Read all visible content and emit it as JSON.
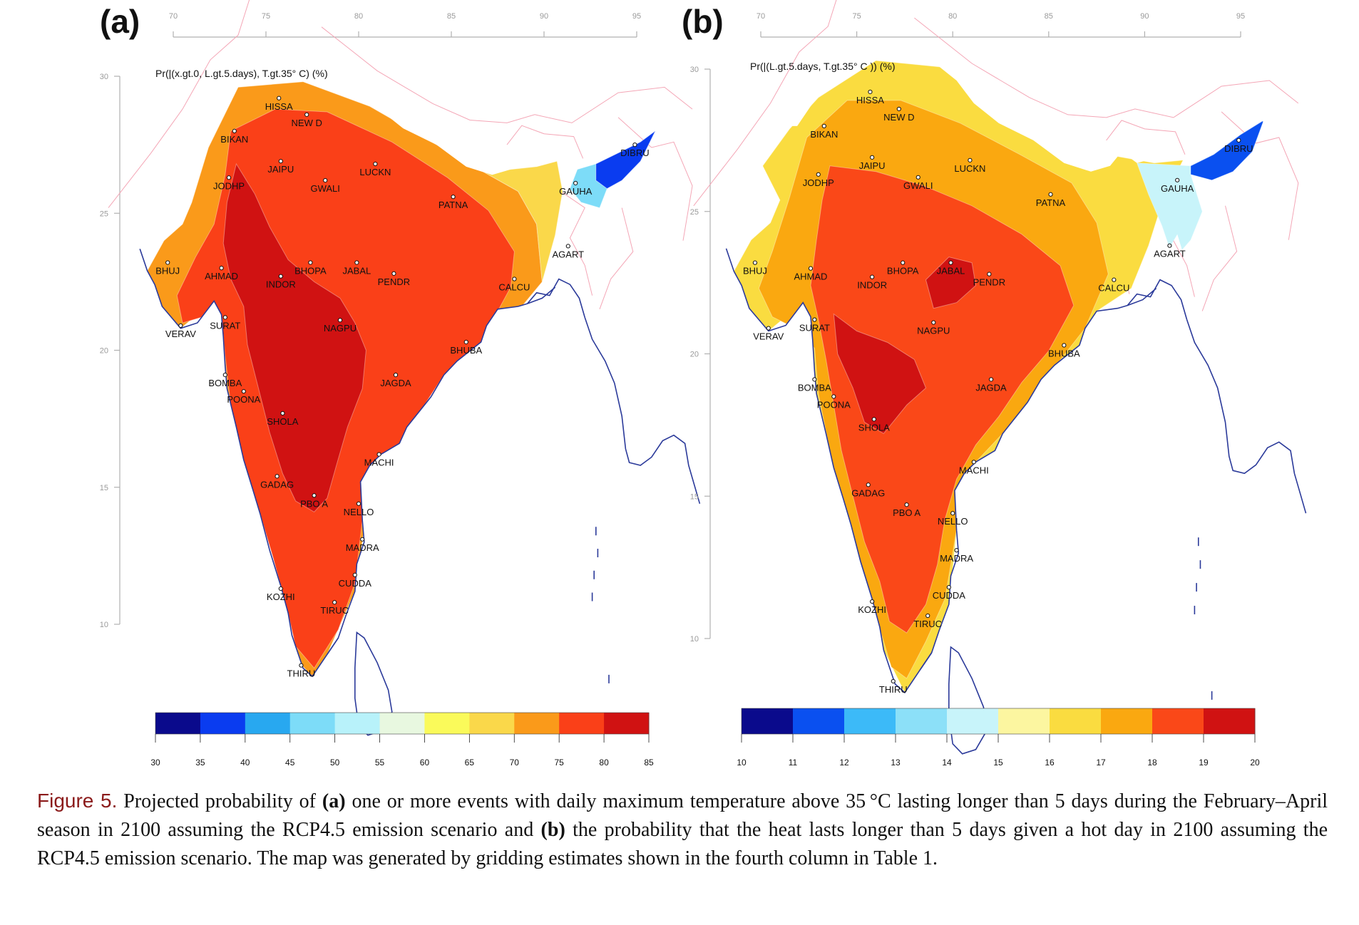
{
  "figure": {
    "label": "Figure 5.",
    "caption_parts": [
      {
        "text": " Projected probability of ",
        "bold": false
      },
      {
        "text": "(a)",
        "bold": true
      },
      {
        "text": " one or more events with daily maximum temperature above 35 °C lasting longer than 5 days during the February–April season in 2100 assuming the RCP4.5 emission scenario and ",
        "bold": false
      },
      {
        "text": "(b)",
        "bold": true
      },
      {
        "text": " the probability that the heat lasts longer than 5 days given a hot day in 2100 assuming the RCP4.5 emission scenario. The map was generated by gridding estimates shown in the fourth column in Table 1.",
        "bold": false
      }
    ]
  },
  "colors": {
    "coast": "#2b3a9a",
    "border": "#f4a6b6",
    "axis": "#b0b0b0"
  },
  "panels": [
    {
      "id": "a",
      "label": "(a)",
      "title": "Pr(|(x.gt.0, L.gt.5.days), T.gt.35° C)  (%)",
      "lon_ticks": [
        "70",
        "75",
        "80",
        "85",
        "90",
        "95"
      ],
      "lat_ticks": [
        "30",
        "25",
        "20",
        "15",
        "10"
      ],
      "colorbar": {
        "ticks": [
          "30",
          "35",
          "40",
          "45",
          "50",
          "55",
          "60",
          "65",
          "70",
          "75",
          "80",
          "85"
        ],
        "colors": [
          "#0a0a8c",
          "#0a3cf0",
          "#28a8f0",
          "#7ddcf8",
          "#b8f2fa",
          "#e8f8e0",
          "#fafa5a",
          "#fad84a",
          "#fa9a1a",
          "#fa4018",
          "#d01212"
        ]
      },
      "cities": [
        {
          "name": "HISSA",
          "lon": 75.7,
          "lat": 29.2
        },
        {
          "name": "NEW D",
          "lon": 77.2,
          "lat": 28.6
        },
        {
          "name": "BIKAN",
          "lon": 73.3,
          "lat": 28.0
        },
        {
          "name": "DIBRU",
          "lon": 94.9,
          "lat": 27.5
        },
        {
          "name": "JAIPU",
          "lon": 75.8,
          "lat": 26.9
        },
        {
          "name": "LUCKN",
          "lon": 80.9,
          "lat": 26.8
        },
        {
          "name": "JODHP",
          "lon": 73.0,
          "lat": 26.3
        },
        {
          "name": "GWALI",
          "lon": 78.2,
          "lat": 26.2
        },
        {
          "name": "GAUHA",
          "lon": 91.7,
          "lat": 26.1
        },
        {
          "name": "PATNA",
          "lon": 85.1,
          "lat": 25.6
        },
        {
          "name": "AGART",
          "lon": 91.3,
          "lat": 23.8
        },
        {
          "name": "BHUJ",
          "lon": 69.7,
          "lat": 23.2
        },
        {
          "name": "AHMAD",
          "lon": 72.6,
          "lat": 23.0
        },
        {
          "name": "BHOPA",
          "lon": 77.4,
          "lat": 23.2
        },
        {
          "name": "JABAL",
          "lon": 79.9,
          "lat": 23.2
        },
        {
          "name": "INDOR",
          "lon": 75.8,
          "lat": 22.7
        },
        {
          "name": "PENDR",
          "lon": 81.9,
          "lat": 22.8
        },
        {
          "name": "CALCU",
          "lon": 88.4,
          "lat": 22.6
        },
        {
          "name": "SURAT",
          "lon": 72.8,
          "lat": 21.2
        },
        {
          "name": "NAGPU",
          "lon": 79.0,
          "lat": 21.1
        },
        {
          "name": "VERAV",
          "lon": 70.4,
          "lat": 20.9
        },
        {
          "name": "BHUBA",
          "lon": 85.8,
          "lat": 20.3
        },
        {
          "name": "JAGDA",
          "lon": 82.0,
          "lat": 19.1
        },
        {
          "name": "BOMBA",
          "lon": 72.8,
          "lat": 19.1
        },
        {
          "name": "POONA",
          "lon": 73.8,
          "lat": 18.5
        },
        {
          "name": "SHOLA",
          "lon": 75.9,
          "lat": 17.7
        },
        {
          "name": "MACHI",
          "lon": 81.1,
          "lat": 16.2
        },
        {
          "name": "GADAG",
          "lon": 75.6,
          "lat": 15.4
        },
        {
          "name": "PBO A",
          "lon": 77.6,
          "lat": 14.7
        },
        {
          "name": "NELLO",
          "lon": 80.0,
          "lat": 14.4
        },
        {
          "name": "MADRA",
          "lon": 80.2,
          "lat": 13.1
        },
        {
          "name": "CUDDA",
          "lon": 79.8,
          "lat": 11.8
        },
        {
          "name": "KOZHI",
          "lon": 75.8,
          "lat": 11.3
        },
        {
          "name": "TIRUC",
          "lon": 78.7,
          "lat": 10.8
        },
        {
          "name": "THIRU",
          "lon": 76.9,
          "lat": 8.5
        }
      ]
    },
    {
      "id": "b",
      "label": "(b)",
      "title": "Pr(|(L.gt.5.days, T.gt.35° C )) (%)",
      "lon_ticks": [
        "70",
        "75",
        "80",
        "85",
        "90",
        "95"
      ],
      "lat_ticks": [
        "30",
        "25",
        "20",
        "15",
        "10"
      ],
      "colorbar": {
        "ticks": [
          "10",
          "11",
          "12",
          "13",
          "14",
          "15",
          "16",
          "17",
          "18",
          "19",
          "20"
        ],
        "colors": [
          "#0a0a8c",
          "#0a50f0",
          "#3cbaf8",
          "#8ce0f8",
          "#c8f4fa",
          "#fcf6a0",
          "#fadc40",
          "#faa810",
          "#fa4818",
          "#d01212"
        ]
      },
      "cities": [
        {
          "name": "HISSA",
          "lon": 75.7,
          "lat": 29.2
        },
        {
          "name": "NEW D",
          "lon": 77.2,
          "lat": 28.6
        },
        {
          "name": "BIKAN",
          "lon": 73.3,
          "lat": 28.0
        },
        {
          "name": "DIBRU",
          "lon": 94.9,
          "lat": 27.5
        },
        {
          "name": "JAIPU",
          "lon": 75.8,
          "lat": 26.9
        },
        {
          "name": "LUCKN",
          "lon": 80.9,
          "lat": 26.8
        },
        {
          "name": "JODHP",
          "lon": 73.0,
          "lat": 26.3
        },
        {
          "name": "GWALI",
          "lon": 78.2,
          "lat": 26.2
        },
        {
          "name": "GAUHA",
          "lon": 91.7,
          "lat": 26.1
        },
        {
          "name": "PATNA",
          "lon": 85.1,
          "lat": 25.6
        },
        {
          "name": "AGART",
          "lon": 91.3,
          "lat": 23.8
        },
        {
          "name": "BHUJ",
          "lon": 69.7,
          "lat": 23.2
        },
        {
          "name": "AHMAD",
          "lon": 72.6,
          "lat": 23.0
        },
        {
          "name": "BHOPA",
          "lon": 77.4,
          "lat": 23.2
        },
        {
          "name": "JABAL",
          "lon": 79.9,
          "lat": 23.2
        },
        {
          "name": "INDOR",
          "lon": 75.8,
          "lat": 22.7
        },
        {
          "name": "PENDR",
          "lon": 81.9,
          "lat": 22.8
        },
        {
          "name": "CALCU",
          "lon": 88.4,
          "lat": 22.6
        },
        {
          "name": "SURAT",
          "lon": 72.8,
          "lat": 21.2
        },
        {
          "name": "NAGPU",
          "lon": 79.0,
          "lat": 21.1
        },
        {
          "name": "VERAV",
          "lon": 70.4,
          "lat": 20.9
        },
        {
          "name": "BHUBA",
          "lon": 85.8,
          "lat": 20.3
        },
        {
          "name": "JAGDA",
          "lon": 82.0,
          "lat": 19.1
        },
        {
          "name": "BOMBA",
          "lon": 72.8,
          "lat": 19.1
        },
        {
          "name": "POONA",
          "lon": 73.8,
          "lat": 18.5
        },
        {
          "name": "SHOLA",
          "lon": 75.9,
          "lat": 17.7
        },
        {
          "name": "MACHI",
          "lon": 81.1,
          "lat": 16.2
        },
        {
          "name": "GADAG",
          "lon": 75.6,
          "lat": 15.4
        },
        {
          "name": "PBO A",
          "lon": 77.6,
          "lat": 14.7
        },
        {
          "name": "NELLO",
          "lon": 80.0,
          "lat": 14.4
        },
        {
          "name": "MADRA",
          "lon": 80.2,
          "lat": 13.1
        },
        {
          "name": "CUDDA",
          "lon": 79.8,
          "lat": 11.8
        },
        {
          "name": "KOZHI",
          "lon": 75.8,
          "lat": 11.3
        },
        {
          "name": "TIRUC",
          "lon": 78.7,
          "lat": 10.8
        },
        {
          "name": "THIRU",
          "lon": 76.9,
          "lat": 8.5
        }
      ]
    }
  ]
}
